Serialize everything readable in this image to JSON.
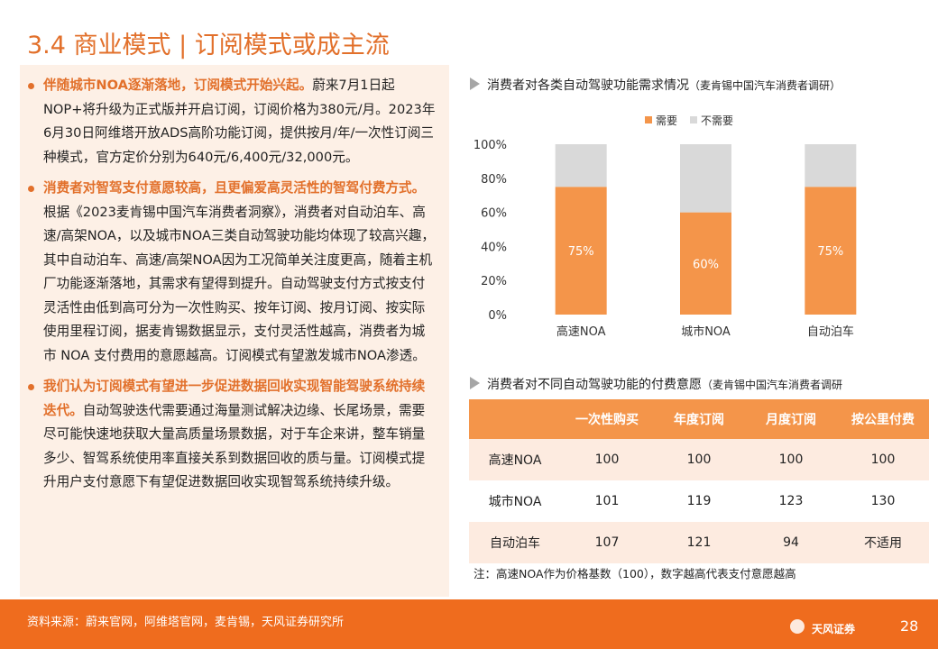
{
  "header": {
    "title": "3.4 商业模式 | 订阅模式或成主流"
  },
  "bullets": [
    {
      "lead": "伴随城市NOA逐渐落地，订阅模式开始兴起。",
      "text": "蔚来7月1日起NOP+将升级为正式版并开启订阅，订阅价格为380元/月。2023年6月30日阿维塔开放ADS高阶功能订阅，提供按月/年/一次性订阅三种模式，官方定价分别为640元/6,400元/32,000元。"
    },
    {
      "lead": "消费者对智驾支付意愿较高，且更偏爱高灵活性的智驾付费方式。",
      "text": "根据《2023麦肯锡中国汽车消费者洞察》，消费者对自动泊车、高速/高架NOA，以及城市NOA三类自动驾驶功能均体现了较高兴趣，其中自动泊车、高速/高架NOA因为工况简单关注度更高，随着主机厂功能逐渐落地，其需求有望得到提升。自动驾驶支付方式按支付灵活性由低到高可分为一次性购买、按年订阅、按月订阅、按实际使用里程订阅，据麦肯锡数据显示，支付灵活性越高，消费者为城市 NOA 支付费用的意愿越高。订阅模式有望激发城市NOA渗透。"
    },
    {
      "lead": "我们认为订阅模式有望进一步促进数据回收实现智能驾驶系统持续迭代。",
      "text": "自动驾驶迭代需要通过海量测试解决边缘、长尾场景，需要尽可能快速地获取大量高质量场景数据，对于车企来讲，整车销量多少、智驾系统使用率直接关系到数据回收的质与量。订阅模式提升用户支付意愿下有望促进数据回收实现智驾系统持续升级。"
    }
  ],
  "chart_data": {
    "type": "bar",
    "stacked": true,
    "title": "消费者对各类自动驾驶功能需求情况",
    "subtitle": "（麦肯锡中国汽车消费者调研）",
    "categories": [
      "高速NOA",
      "城市NOA",
      "自动泊车"
    ],
    "series": [
      {
        "name": "需要",
        "color": "#f4954a",
        "values": [
          75,
          60,
          75
        ],
        "value_labels": [
          "75%",
          "60%",
          "75%"
        ]
      },
      {
        "name": "不需要",
        "color": "#d9d9d9",
        "values": [
          25,
          40,
          25
        ]
      }
    ],
    "ylim": [
      0,
      100
    ],
    "yticks": [
      {
        "value": 0,
        "label": "0%"
      },
      {
        "value": 20,
        "label": "20%"
      },
      {
        "value": 40,
        "label": "40%"
      },
      {
        "value": 60,
        "label": "60%"
      },
      {
        "value": 80,
        "label": "80%"
      },
      {
        "value": 100,
        "label": "100%"
      }
    ],
    "grid": false,
    "legend": "top"
  },
  "table": {
    "title": "消费者对不同自动驾驶功能的付费意愿",
    "subtitle": "（麦肯锡中国汽车消费者调研",
    "columns": [
      "一次性购买",
      "年度订阅",
      "月度订阅",
      "按公里付费"
    ],
    "rows": [
      {
        "label": "高速NOA",
        "values": [
          100,
          100,
          100,
          100
        ]
      },
      {
        "label": "城市NOA",
        "values": [
          101,
          119,
          123,
          130
        ]
      },
      {
        "label": "自动泊车",
        "values": [
          107,
          121,
          94,
          "不适用"
        ]
      }
    ],
    "note": "注：高速NOA作为价格基数（100），数字越高代表支付意愿越高"
  },
  "footer": {
    "source": "资料来源：蔚来官网，阿维塔官网，麦肯锡，天风证券研究所",
    "logo": "天风证券",
    "page": "28"
  }
}
